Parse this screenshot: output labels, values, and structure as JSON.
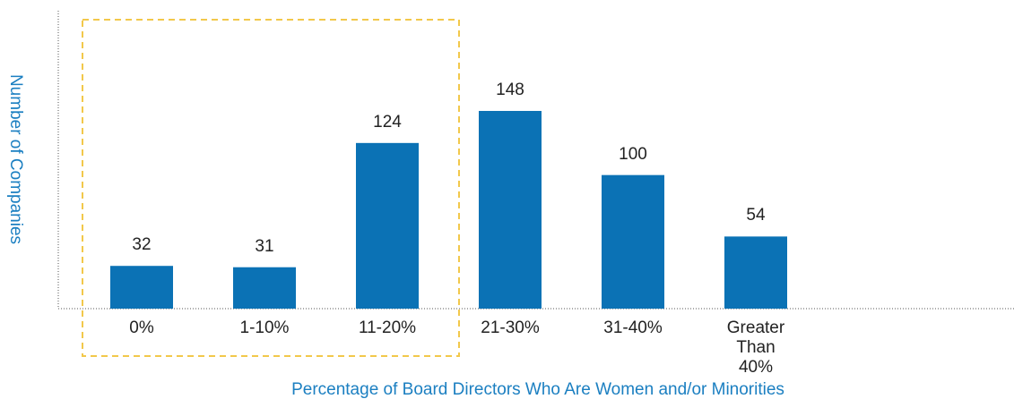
{
  "chart_data": {
    "type": "bar",
    "categories": [
      "0%",
      "1-10%",
      "11-20%",
      "21-30%",
      "31-40%",
      "Greater Than 40%"
    ],
    "values": [
      32,
      31,
      124,
      148,
      100,
      54
    ],
    "color": "#0b72b5",
    "ylim": [
      0,
      223
    ],
    "y_label": "Number of Companies",
    "x_label": "Percentage of Board Directors Who Are Women and/or Minorities"
  }
}
